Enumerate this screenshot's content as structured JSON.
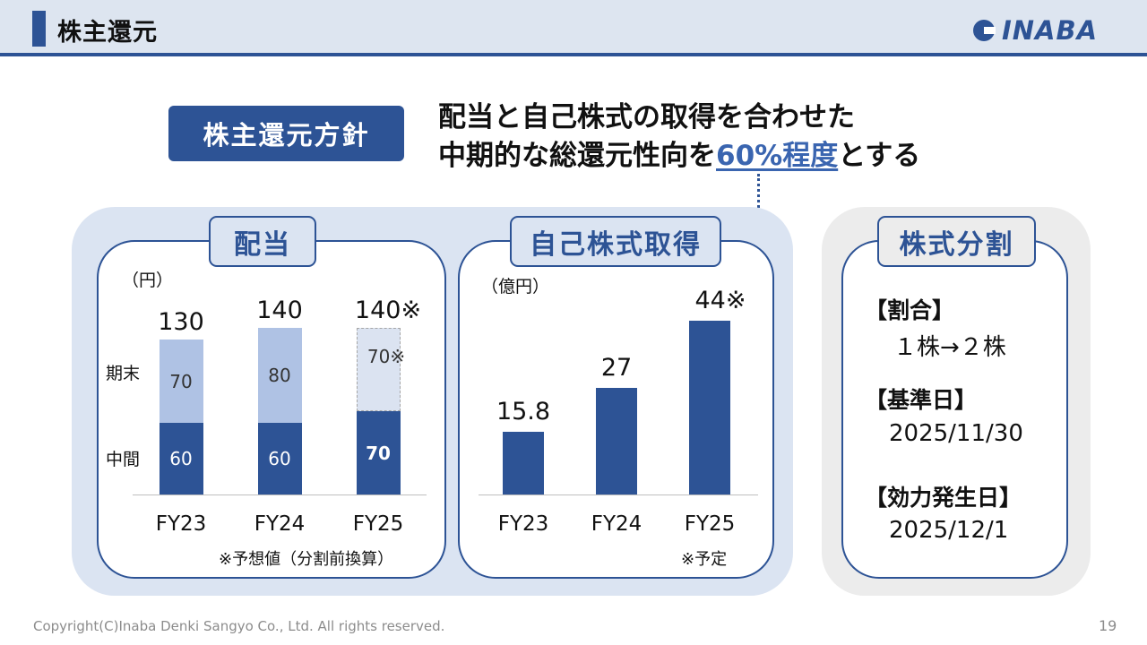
{
  "header": {
    "title": "株主還元",
    "logo": "INABA"
  },
  "policy": {
    "badge": "株主還元方針",
    "line1": "配当と自己株式の取得を合わせた",
    "line2_pre": "中期的な総還元性向を",
    "line2_highlight": "60%程度",
    "line2_post": "とする"
  },
  "dividend": {
    "tab": "配当",
    "unit": "（円）",
    "row_labels": {
      "end": "期末",
      "interim": "中間"
    },
    "note": "※予想値（分割前換算）",
    "forecast_mark": "※",
    "colors": {
      "interim": "#2d5395",
      "end": "#afc2e4",
      "forecast": "#dbe3f1",
      "forecast_border": "#a6a6a6"
    }
  },
  "buyback": {
    "tab": "自己株式取得",
    "unit": "（億円）",
    "note": "※予定",
    "forecast_mark": "※",
    "color": "#2d5395"
  },
  "split": {
    "tab": "株式分割",
    "ratio_label": "【割合】",
    "ratio_value": "１株→２株",
    "record_label": "【基準日】",
    "record_value": "2025/11/30",
    "effective_label": "【効力発生日】",
    "effective_value": "2025/12/1"
  },
  "chart_data": [
    {
      "type": "bar",
      "stacked": true,
      "title": "配当",
      "ylabel": "（円）",
      "categories": [
        "FY23",
        "FY24",
        "FY25"
      ],
      "series": [
        {
          "name": "中間",
          "values": [
            60,
            60,
            70
          ]
        },
        {
          "name": "期末",
          "values": [
            70,
            80,
            70
          ]
        }
      ],
      "totals": [
        130,
        140,
        140
      ],
      "total_labels": [
        "130",
        "140",
        "140"
      ],
      "forecast": [
        false,
        false,
        true
      ],
      "ylim": [
        0,
        140
      ]
    },
    {
      "type": "bar",
      "title": "自己株式取得",
      "ylabel": "（億円）",
      "categories": [
        "FY23",
        "FY24",
        "FY25"
      ],
      "values": [
        15.8,
        27,
        44
      ],
      "value_labels": [
        "15.8",
        "27",
        "44"
      ],
      "forecast": [
        false,
        false,
        true
      ],
      "ylim": [
        0,
        44
      ]
    }
  ],
  "footer": {
    "copyright": "Copyright(C)Inaba Denki Sangyo Co., Ltd. All rights reserved.",
    "page": "19"
  }
}
